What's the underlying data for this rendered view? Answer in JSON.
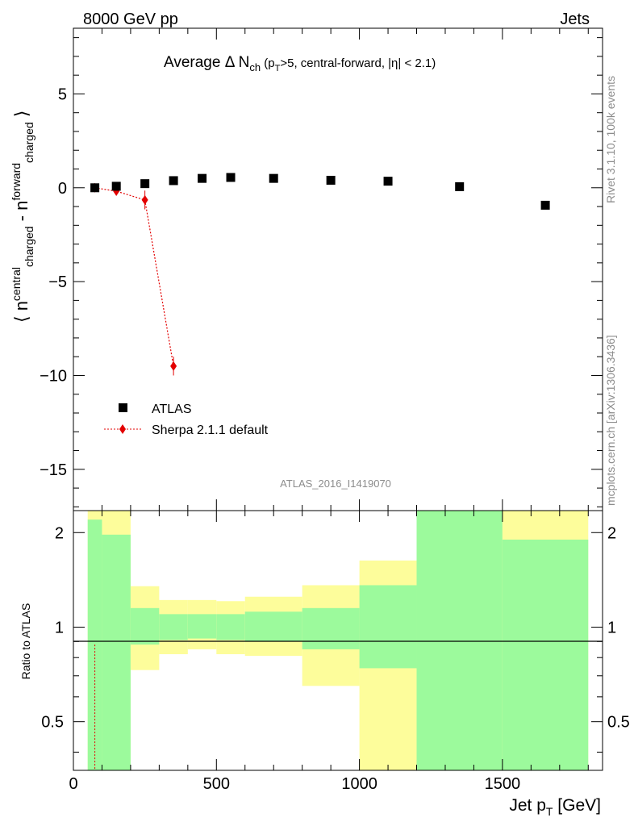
{
  "header": {
    "energy_label": "8000 GeV pp",
    "category_label": "Jets"
  },
  "side_labels": {
    "rivet": "Rivet 3.1.10,  100k events",
    "mcplots": "mcplots.cern.ch [arXiv:1306.3436]"
  },
  "colors": {
    "data": "#000000",
    "mc": "#e30000",
    "band_inner": "#9cfa9c",
    "band_outer": "#fdfd9b"
  },
  "chart_data": [
    {
      "type": "scatter",
      "panel": "main",
      "title": "Average Δ N_ch (p_T>5, central-forward, |η| < 2.1)",
      "ylabel": "⟨ n^central_charged - n^forward_charged ⟩",
      "xlim": [
        0,
        1850
      ],
      "ylim": [
        -17.2,
        8.5
      ],
      "yticks": [
        5,
        0,
        -5,
        -10,
        -15
      ],
      "ytick_labels": [
        "5",
        "0",
        "−5",
        "−10",
        "−15"
      ],
      "watermark": "ATLAS_2016_I1419070",
      "legend_position": "bottom-left",
      "series": [
        {
          "name": "ATLAS",
          "marker": "square",
          "x": [
            75,
            150,
            250,
            350,
            450,
            550,
            700,
            900,
            1100,
            1350,
            1650
          ],
          "y": [
            0.0,
            0.08,
            0.22,
            0.38,
            0.5,
            0.55,
            0.5,
            0.4,
            0.35,
            0.06,
            -0.93
          ]
        },
        {
          "name": "Sherpa 2.1.1 default",
          "marker": "diamond",
          "x": [
            75,
            150,
            250,
            350
          ],
          "y": [
            0.0,
            -0.18,
            -0.65,
            -9.5
          ],
          "yerr": [
            0.05,
            0.1,
            0.5,
            0.5
          ]
        }
      ]
    },
    {
      "type": "area",
      "panel": "ratio",
      "ylabel": "Ratio to ATLAS",
      "xlabel": "Jet p_T [GeV]",
      "xlim": [
        0,
        1850
      ],
      "ylim": [
        0.35,
        2.35
      ],
      "xticks": [
        0,
        500,
        1000,
        1500
      ],
      "xtick_labels": [
        "0",
        "500",
        "1000",
        "1500"
      ],
      "yticks": [
        0.5,
        1,
        2
      ],
      "ytick_labels": [
        "0.5",
        "1",
        "2"
      ],
      "bins": [
        {
          "lo": 50,
          "hi": 100,
          "inner": [
            0.35,
            2.2
          ],
          "outer": [
            0.35,
            2.35
          ]
        },
        {
          "lo": 100,
          "hi": 200,
          "inner": [
            0.35,
            1.97
          ],
          "outer": [
            0.35,
            2.35
          ]
        },
        {
          "lo": 200,
          "hi": 300,
          "inner": [
            0.88,
            1.15
          ],
          "outer": [
            0.73,
            1.35
          ]
        },
        {
          "lo": 300,
          "hi": 400,
          "inner": [
            0.91,
            1.1
          ],
          "outer": [
            0.82,
            1.22
          ]
        },
        {
          "lo": 400,
          "hi": 500,
          "inner": [
            0.92,
            1.1
          ],
          "outer": [
            0.85,
            1.22
          ]
        },
        {
          "lo": 500,
          "hi": 600,
          "inner": [
            0.91,
            1.1
          ],
          "outer": [
            0.82,
            1.21
          ]
        },
        {
          "lo": 600,
          "hi": 800,
          "inner": [
            0.9,
            1.12
          ],
          "outer": [
            0.81,
            1.25
          ]
        },
        {
          "lo": 800,
          "hi": 1000,
          "inner": [
            0.85,
            1.15
          ],
          "outer": [
            0.65,
            1.36
          ]
        },
        {
          "lo": 1000,
          "hi": 1200,
          "inner": [
            0.74,
            1.36
          ],
          "outer": [
            0.35,
            1.63
          ]
        },
        {
          "lo": 1200,
          "hi": 1500,
          "inner": [
            0.35,
            2.35
          ],
          "outer": [
            0.35,
            2.35
          ]
        },
        {
          "lo": 1500,
          "hi": 1800,
          "inner": [
            0.35,
            1.9
          ],
          "outer": [
            0.35,
            2.35
          ]
        }
      ],
      "reference": 1,
      "mc_ratio_fragment": {
        "x": 75,
        "y": [
          0.35,
          0.88
        ]
      }
    }
  ]
}
